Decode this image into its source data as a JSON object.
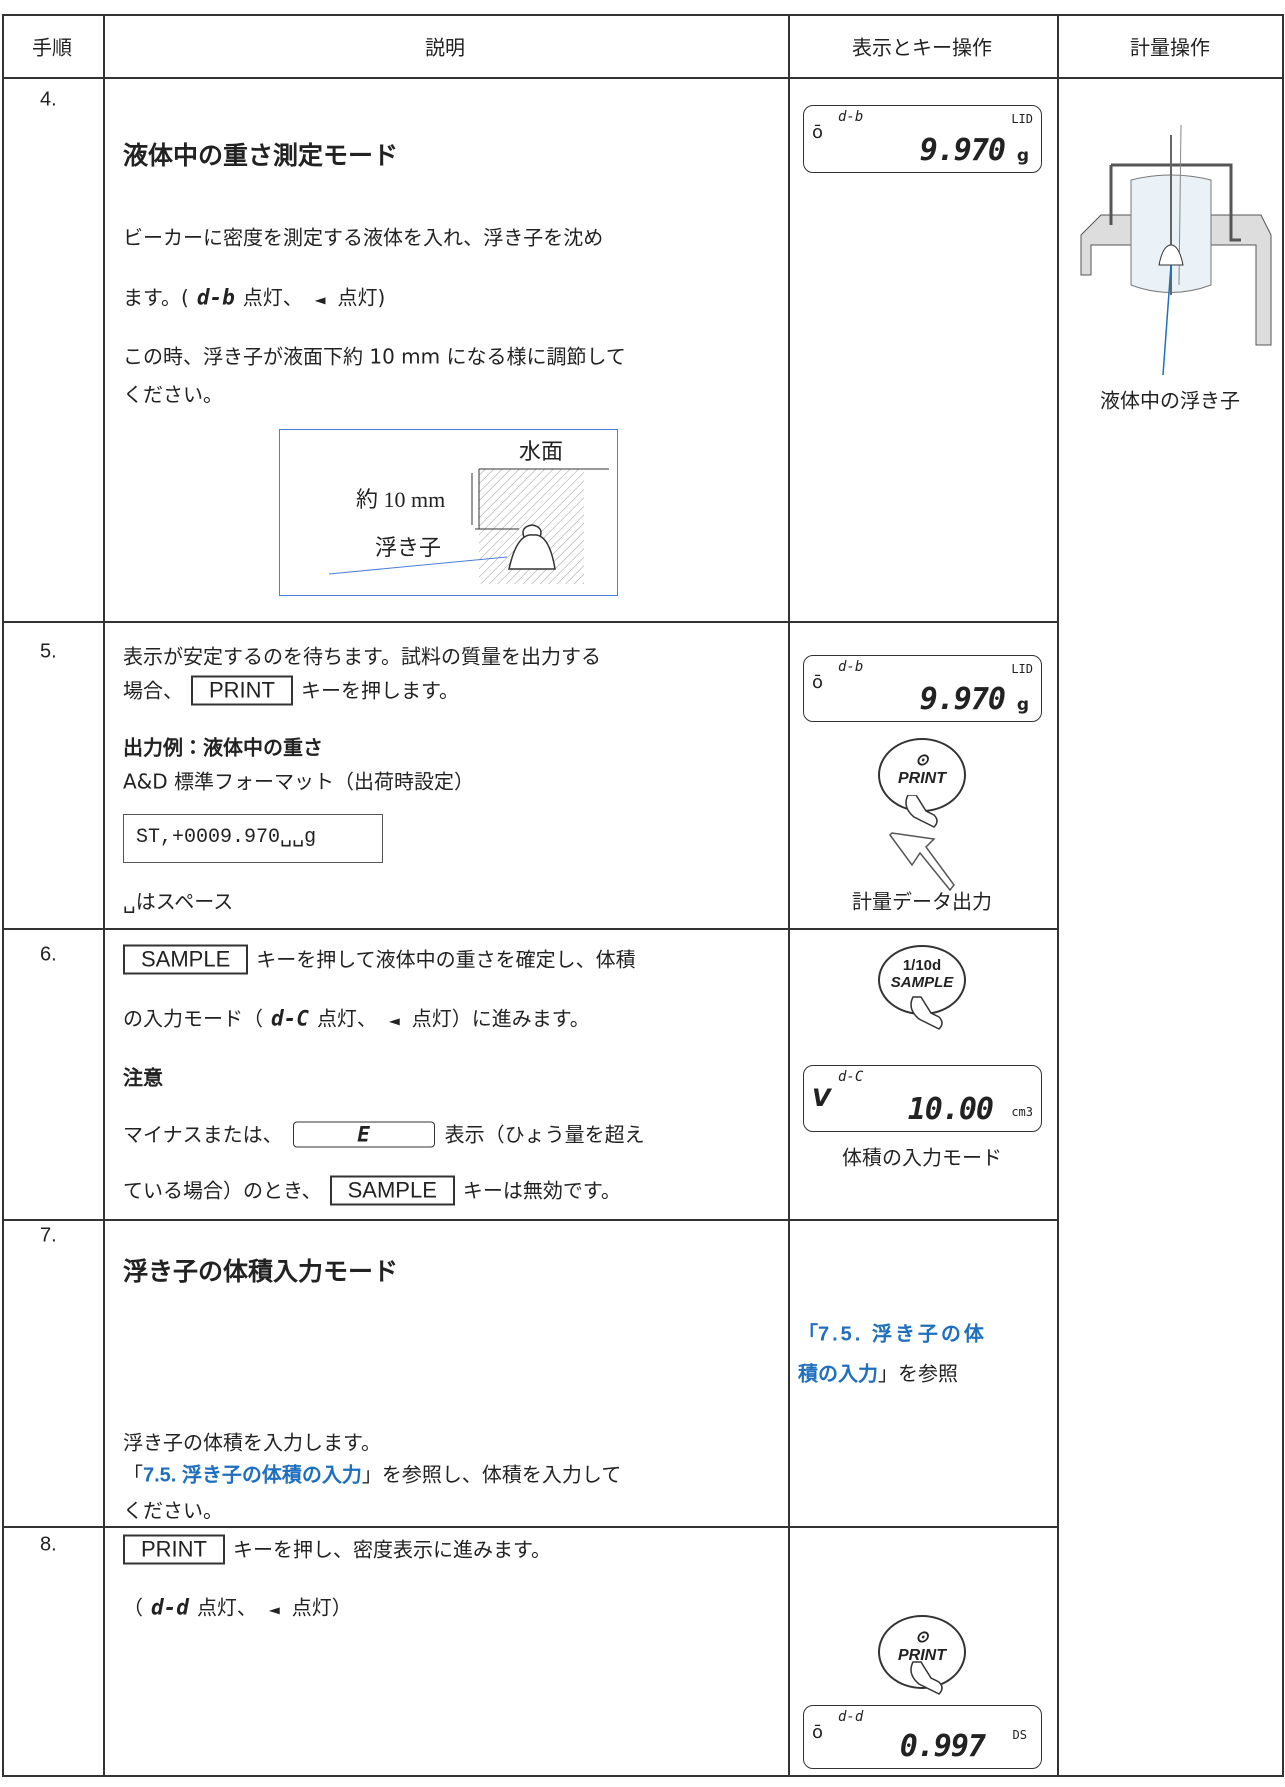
{
  "header": [
    "手順",
    "説明",
    "表示とキー操作",
    "計量操作"
  ],
  "rows": [
    {
      "step": "4.",
      "heading": "液体中の重さ測定モード",
      "text1": "ビーカーに密度を測定する液体を入れ、浮き子を沈め",
      "text2": "ます。(",
      "mode": "d-b",
      "lit1": "点灯、",
      "arrow": "◄",
      "lit2": "点灯)",
      "text3": "この時、浮き子が液面下約 10 mm になる様に調節して",
      "text4": "ください。",
      "figure": {
        "surface": "水面",
        "depth": "約 10 mm",
        "float": "浮き子"
      },
      "display": {
        "mode": "d-b",
        "value": "9.970",
        "unit": "LID",
        "g": "g"
      },
      "caption": "液体中の浮き子"
    },
    {
      "step": "5.",
      "text1": "表示が安定するのを待ちます。試料の質量を出力する",
      "text2": "場合、",
      "key": "PRINT",
      "text3": "キーを押します。",
      "example_title": "出力例：液体中の重さ",
      "format": "A&D 標準フォーマット（出荷時設定）",
      "output": "ST,+0009.970␣␣g",
      "note": "␣はスペース",
      "display": {
        "mode": "d-b",
        "value": "9.970",
        "unit": "LID",
        "g": "g"
      },
      "button": {
        "symbol": "⊙",
        "label": "PRINT"
      },
      "caption": "計量データ出力"
    },
    {
      "step": "6.",
      "key": "SAMPLE",
      "text1": "キーを押して液体中の重さを確定し、体積",
      "text2": "の入力モード（",
      "mode": "d-C",
      "lit1": "点灯、",
      "arrow": "◄",
      "lit2": "点灯）に進みます。",
      "note_title": "注意",
      "text3": "マイナスまたは、",
      "error": "E",
      "text4": "表示（ひょう量を超え",
      "text5": "ている場合）のとき、",
      "key2": "SAMPLE",
      "text6": "キーは無効です。",
      "button": {
        "top": "1/10d",
        "label": "SAMPLE"
      },
      "display": {
        "indicator": "V",
        "mode": "d-C",
        "value": "10.00",
        "unit": "cm3"
      },
      "caption": "体積の入力モード"
    },
    {
      "step": "7.",
      "heading": "浮き子の体積入力モード",
      "text1": "浮き子の体積を入力します。",
      "open": "「",
      "link": "7.5. 浮き子の体積の入力",
      "close": "」を参照し、体積を入力して",
      "text2": "ください。",
      "ref": {
        "open": "「",
        "link1": "7.5. 浮き子の体",
        "link2": "積の入力",
        "close": "」を参照"
      }
    },
    {
      "step": "8.",
      "key": "PRINT",
      "text1": "キーを押し、密度表示に進みます。",
      "text2": "（",
      "mode": "d-d",
      "lit1": "点灯、",
      "arrow": "◄",
      "lit2": "点灯）",
      "button": {
        "symbol": "⊙",
        "label": "PRINT"
      },
      "display": {
        "mode": "d-d",
        "value": "0.997",
        "unit": "DS"
      }
    }
  ]
}
